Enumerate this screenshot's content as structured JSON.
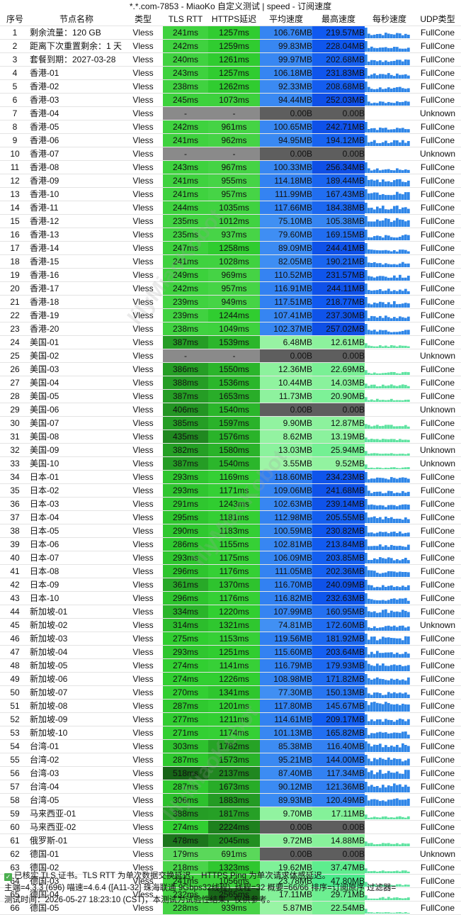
{
  "title": "*.*.com-7853 - MiaoKo 自定义测试 | speed - 订阅速度",
  "headers": {
    "idx": "序号",
    "name": "节点名称",
    "type": "类型",
    "rtt": "TLS RTT",
    "https": "HTTPS延迟",
    "avg": "平均速度",
    "max": "最高速度",
    "per_sec": "每秒速度",
    "udp": "UDP类型"
  },
  "rows": [
    {
      "i": "1",
      "name": "剩余流量：120 GB",
      "type": "Vless",
      "rtt": "241ms",
      "https": "1257ms",
      "avg": "106.76MB",
      "max": "219.57MB",
      "udp": "FullCone"
    },
    {
      "i": "2",
      "name": "距离下次重置剩余：1 天",
      "type": "Vless",
      "rtt": "242ms",
      "https": "1259ms",
      "avg": "99.83MB",
      "max": "228.04MB",
      "udp": "FullCone"
    },
    {
      "i": "3",
      "name": "套餐到期：2027-03-28",
      "type": "Vless",
      "rtt": "240ms",
      "https": "1261ms",
      "avg": "99.97MB",
      "max": "202.68MB",
      "udp": "FullCone"
    },
    {
      "i": "4",
      "name": "香港-01",
      "type": "Vless",
      "rtt": "243ms",
      "https": "1257ms",
      "avg": "106.18MB",
      "max": "231.83MB",
      "udp": "FullCone"
    },
    {
      "i": "5",
      "name": "香港-02",
      "type": "Vless",
      "rtt": "238ms",
      "https": "1262ms",
      "avg": "92.33MB",
      "max": "208.68MB",
      "udp": "FullCone"
    },
    {
      "i": "6",
      "name": "香港-03",
      "type": "Vless",
      "rtt": "245ms",
      "https": "1073ms",
      "avg": "94.44MB",
      "max": "252.03MB",
      "udp": "FullCone"
    },
    {
      "i": "7",
      "name": "香港-04",
      "type": "Vless",
      "rtt": "-",
      "https": "-",
      "avg": "0.00B",
      "max": "0.00B",
      "udp": "Unknown"
    },
    {
      "i": "8",
      "name": "香港-05",
      "type": "Vless",
      "rtt": "242ms",
      "https": "961ms",
      "avg": "100.65MB",
      "max": "242.71MB",
      "udp": "FullCone"
    },
    {
      "i": "9",
      "name": "香港-06",
      "type": "Vless",
      "rtt": "241ms",
      "https": "962ms",
      "avg": "94.95MB",
      "max": "194.12MB",
      "udp": "FullCone"
    },
    {
      "i": "10",
      "name": "香港-07",
      "type": "Vless",
      "rtt": "-",
      "https": "-",
      "avg": "0.00B",
      "max": "0.00B",
      "udp": "Unknown"
    },
    {
      "i": "11",
      "name": "香港-08",
      "type": "Vless",
      "rtt": "243ms",
      "https": "967ms",
      "avg": "100.33MB",
      "max": "256.34MB",
      "udp": "FullCone"
    },
    {
      "i": "12",
      "name": "香港-09",
      "type": "Vless",
      "rtt": "241ms",
      "https": "955ms",
      "avg": "114.18MB",
      "max": "189.44MB",
      "udp": "FullCone"
    },
    {
      "i": "13",
      "name": "香港-10",
      "type": "Vless",
      "rtt": "241ms",
      "https": "957ms",
      "avg": "111.99MB",
      "max": "167.43MB",
      "udp": "FullCone"
    },
    {
      "i": "14",
      "name": "香港-11",
      "type": "Vless",
      "rtt": "244ms",
      "https": "1035ms",
      "avg": "117.66MB",
      "max": "184.38MB",
      "udp": "FullCone"
    },
    {
      "i": "15",
      "name": "香港-12",
      "type": "Vless",
      "rtt": "235ms",
      "https": "1012ms",
      "avg": "75.10MB",
      "max": "105.38MB",
      "udp": "FullCone"
    },
    {
      "i": "16",
      "name": "香港-13",
      "type": "Vless",
      "rtt": "235ms",
      "https": "937ms",
      "avg": "79.60MB",
      "max": "169.15MB",
      "udp": "FullCone"
    },
    {
      "i": "17",
      "name": "香港-14",
      "type": "Vless",
      "rtt": "247ms",
      "https": "1258ms",
      "avg": "89.09MB",
      "max": "244.41MB",
      "udp": "FullCone"
    },
    {
      "i": "18",
      "name": "香港-15",
      "type": "Vless",
      "rtt": "241ms",
      "https": "1028ms",
      "avg": "82.05MB",
      "max": "190.21MB",
      "udp": "FullCone"
    },
    {
      "i": "19",
      "name": "香港-16",
      "type": "Vless",
      "rtt": "249ms",
      "https": "969ms",
      "avg": "110.52MB",
      "max": "231.57MB",
      "udp": "FullCone"
    },
    {
      "i": "20",
      "name": "香港-17",
      "type": "Vless",
      "rtt": "242ms",
      "https": "957ms",
      "avg": "116.91MB",
      "max": "244.11MB",
      "udp": "FullCone"
    },
    {
      "i": "21",
      "name": "香港-18",
      "type": "Vless",
      "rtt": "239ms",
      "https": "949ms",
      "avg": "117.51MB",
      "max": "218.77MB",
      "udp": "FullCone"
    },
    {
      "i": "22",
      "name": "香港-19",
      "type": "Vless",
      "rtt": "239ms",
      "https": "1244ms",
      "avg": "107.41MB",
      "max": "237.30MB",
      "udp": "FullCone"
    },
    {
      "i": "23",
      "name": "香港-20",
      "type": "Vless",
      "rtt": "238ms",
      "https": "1049ms",
      "avg": "102.37MB",
      "max": "257.02MB",
      "udp": "FullCone"
    },
    {
      "i": "24",
      "name": "美国-01",
      "type": "Vless",
      "rtt": "387ms",
      "https": "1539ms",
      "avg": "6.48MB",
      "max": "12.61MB",
      "udp": "FullCone"
    },
    {
      "i": "25",
      "name": "美国-02",
      "type": "Vless",
      "rtt": "-",
      "https": "-",
      "avg": "0.00B",
      "max": "0.00B",
      "udp": "Unknown"
    },
    {
      "i": "26",
      "name": "美国-03",
      "type": "Vless",
      "rtt": "386ms",
      "https": "1550ms",
      "avg": "12.36MB",
      "max": "22.69MB",
      "udp": "FullCone"
    },
    {
      "i": "27",
      "name": "美国-04",
      "type": "Vless",
      "rtt": "388ms",
      "https": "1536ms",
      "avg": "10.44MB",
      "max": "14.03MB",
      "udp": "FullCone"
    },
    {
      "i": "28",
      "name": "美国-05",
      "type": "Vless",
      "rtt": "387ms",
      "https": "1653ms",
      "avg": "11.73MB",
      "max": "20.90MB",
      "udp": "FullCone"
    },
    {
      "i": "29",
      "name": "美国-06",
      "type": "Vless",
      "rtt": "406ms",
      "https": "1540ms",
      "avg": "0.00B",
      "max": "0.00B",
      "udp": "Unknown"
    },
    {
      "i": "30",
      "name": "美国-07",
      "type": "Vless",
      "rtt": "385ms",
      "https": "1597ms",
      "avg": "9.90MB",
      "max": "12.87MB",
      "udp": "FullCone"
    },
    {
      "i": "31",
      "name": "美国-08",
      "type": "Vless",
      "rtt": "435ms",
      "https": "1576ms",
      "avg": "8.62MB",
      "max": "13.19MB",
      "udp": "FullCone"
    },
    {
      "i": "32",
      "name": "美国-09",
      "type": "Vless",
      "rtt": "382ms",
      "https": "1580ms",
      "avg": "13.03MB",
      "max": "25.94MB",
      "udp": "Unknown"
    },
    {
      "i": "33",
      "name": "美国-10",
      "type": "Vless",
      "rtt": "387ms",
      "https": "1540ms",
      "avg": "3.55MB",
      "max": "9.52MB",
      "udp": "Unknown"
    },
    {
      "i": "34",
      "name": "日本-01",
      "type": "Vless",
      "rtt": "293ms",
      "https": "1169ms",
      "avg": "118.60MB",
      "max": "234.23MB",
      "udp": "FullCone"
    },
    {
      "i": "35",
      "name": "日本-02",
      "type": "Vless",
      "rtt": "293ms",
      "https": "1171ms",
      "avg": "109.06MB",
      "max": "241.68MB",
      "udp": "FullCone"
    },
    {
      "i": "36",
      "name": "日本-03",
      "type": "Vless",
      "rtt": "291ms",
      "https": "1243ms",
      "avg": "102.63MB",
      "max": "239.14MB",
      "udp": "FullCone"
    },
    {
      "i": "37",
      "name": "日本-04",
      "type": "Vless",
      "rtt": "295ms",
      "https": "1181ms",
      "avg": "112.98MB",
      "max": "205.55MB",
      "udp": "FullCone"
    },
    {
      "i": "38",
      "name": "日本-05",
      "type": "Vless",
      "rtt": "290ms",
      "https": "1183ms",
      "avg": "100.59MB",
      "max": "230.82MB",
      "udp": "FullCone"
    },
    {
      "i": "39",
      "name": "日本-06",
      "type": "Vless",
      "rtt": "286ms",
      "https": "1155ms",
      "avg": "102.81MB",
      "max": "213.84MB",
      "udp": "FullCone"
    },
    {
      "i": "40",
      "name": "日本-07",
      "type": "Vless",
      "rtt": "293ms",
      "https": "1175ms",
      "avg": "106.09MB",
      "max": "203.85MB",
      "udp": "FullCone"
    },
    {
      "i": "41",
      "name": "日本-08",
      "type": "Vless",
      "rtt": "296ms",
      "https": "1176ms",
      "avg": "111.05MB",
      "max": "202.36MB",
      "udp": "FullCone"
    },
    {
      "i": "42",
      "name": "日本-09",
      "type": "Vless",
      "rtt": "361ms",
      "https": "1370ms",
      "avg": "116.70MB",
      "max": "240.09MB",
      "udp": "FullCone"
    },
    {
      "i": "43",
      "name": "日本-10",
      "type": "Vless",
      "rtt": "296ms",
      "https": "1176ms",
      "avg": "116.82MB",
      "max": "232.63MB",
      "udp": "FullCone"
    },
    {
      "i": "44",
      "name": "新加坡-01",
      "type": "Vless",
      "rtt": "334ms",
      "https": "1220ms",
      "avg": "107.99MB",
      "max": "160.95MB",
      "udp": "FullCone"
    },
    {
      "i": "45",
      "name": "新加坡-02",
      "type": "Vless",
      "rtt": "314ms",
      "https": "1321ms",
      "avg": "74.81MB",
      "max": "172.60MB",
      "udp": "Unknown"
    },
    {
      "i": "46",
      "name": "新加坡-03",
      "type": "Vless",
      "rtt": "275ms",
      "https": "1153ms",
      "avg": "119.56MB",
      "max": "181.92MB",
      "udp": "FullCone"
    },
    {
      "i": "47",
      "name": "新加坡-04",
      "type": "Vless",
      "rtt": "293ms",
      "https": "1251ms",
      "avg": "115.60MB",
      "max": "203.64MB",
      "udp": "FullCone"
    },
    {
      "i": "48",
      "name": "新加坡-05",
      "type": "Vless",
      "rtt": "274ms",
      "https": "1141ms",
      "avg": "116.79MB",
      "max": "179.93MB",
      "udp": "FullCone"
    },
    {
      "i": "49",
      "name": "新加坡-06",
      "type": "Vless",
      "rtt": "274ms",
      "https": "1226ms",
      "avg": "108.98MB",
      "max": "171.82MB",
      "udp": "FullCone"
    },
    {
      "i": "50",
      "name": "新加坡-07",
      "type": "Vless",
      "rtt": "270ms",
      "https": "1341ms",
      "avg": "77.30MB",
      "max": "150.13MB",
      "udp": "FullCone"
    },
    {
      "i": "51",
      "name": "新加坡-08",
      "type": "Vless",
      "rtt": "287ms",
      "https": "1201ms",
      "avg": "117.80MB",
      "max": "145.67MB",
      "udp": "FullCone"
    },
    {
      "i": "52",
      "name": "新加坡-09",
      "type": "Vless",
      "rtt": "277ms",
      "https": "1211ms",
      "avg": "114.61MB",
      "max": "209.17MB",
      "udp": "FullCone"
    },
    {
      "i": "53",
      "name": "新加坡-10",
      "type": "Vless",
      "rtt": "271ms",
      "https": "1174ms",
      "avg": "101.13MB",
      "max": "165.82MB",
      "udp": "FullCone"
    },
    {
      "i": "54",
      "name": "台湾-01",
      "type": "Vless",
      "rtt": "303ms",
      "https": "1782ms",
      "avg": "85.38MB",
      "max": "116.40MB",
      "udp": "FullCone"
    },
    {
      "i": "55",
      "name": "台湾-02",
      "type": "Vless",
      "rtt": "287ms",
      "https": "1573ms",
      "avg": "95.21MB",
      "max": "144.00MB",
      "udp": "FullCone"
    },
    {
      "i": "56",
      "name": "台湾-03",
      "type": "Vless",
      "rtt": "518ms",
      "https": "2137ms",
      "avg": "87.40MB",
      "max": "117.34MB",
      "udp": "FullCone"
    },
    {
      "i": "57",
      "name": "台湾-04",
      "type": "Vless",
      "rtt": "287ms",
      "https": "1673ms",
      "avg": "90.12MB",
      "max": "121.36MB",
      "udp": "FullCone"
    },
    {
      "i": "58",
      "name": "台湾-05",
      "type": "Vless",
      "rtt": "306ms",
      "https": "1883ms",
      "avg": "89.93MB",
      "max": "120.49MB",
      "udp": "FullCone"
    },
    {
      "i": "59",
      "name": "马来西亚-01",
      "type": "Vless",
      "rtt": "388ms",
      "https": "1817ms",
      "avg": "9.70MB",
      "max": "17.11MB",
      "udp": "FullCone"
    },
    {
      "i": "60",
      "name": "马来西亚-02",
      "type": "Vless",
      "rtt": "274ms",
      "https": "2224ms",
      "avg": "0.00B",
      "max": "0.00B",
      "udp": "FullCone"
    },
    {
      "i": "61",
      "name": "俄罗斯-01",
      "type": "Vless",
      "rtt": "478ms",
      "https": "2045ms",
      "avg": "9.72MB",
      "max": "14.88MB",
      "udp": "FullCone"
    },
    {
      "i": "62",
      "name": "德国-01",
      "type": "Vless",
      "rtt": "179ms",
      "https": "691ms",
      "avg": "0.00B",
      "max": "0.00B",
      "udp": "Unknown"
    },
    {
      "i": "63",
      "name": "德国-02",
      "type": "Vless",
      "rtt": "218ms",
      "https": "1323ms",
      "avg": "19.62MB",
      "max": "37.47MB",
      "udp": "FullCone"
    },
    {
      "i": "64",
      "name": "德国-03",
      "type": "Vless",
      "rtt": "241ms",
      "https": "1056ms",
      "avg": "23.78MB",
      "max": "47.80MB",
      "udp": "FullCone"
    },
    {
      "i": "65",
      "name": "德国-04",
      "type": "Vless",
      "rtt": "232ms",
      "https": "2565ms",
      "avg": "17.11MB",
      "max": "29.71MB",
      "udp": "FullCone"
    },
    {
      "i": "66",
      "name": "德国-05",
      "type": "Vless",
      "rtt": "228ms",
      "https": "939ms",
      "avg": "5.87MB",
      "max": "22.54MB",
      "udp": "FullCone"
    }
  ],
  "footer": {
    "line1": "已核实 TLS 证书。TLS RTT 为单次数据交换延迟， HTTPS Ping 为单次请求体感延迟。",
    "line2": "主端=4.3.3 (696) 喵速=4.6.4 ([A11-32] 珠海联通 9Gbps32线程), 线程=32 概要=66/66 排序=订阅原序 过滤器=",
    "line3": "测试时间：2026-05-27 18:23:10 (CST)，本测试为试验性结果，仅供参考。"
  },
  "watermark": "lilyMiaoKobot",
  "colors": {
    "dash_gray": "#8a8a8a",
    "zero_gray": "#5e5e5e",
    "spark_blue": "#2f86e8",
    "spark_green": "#5fe3a1"
  }
}
